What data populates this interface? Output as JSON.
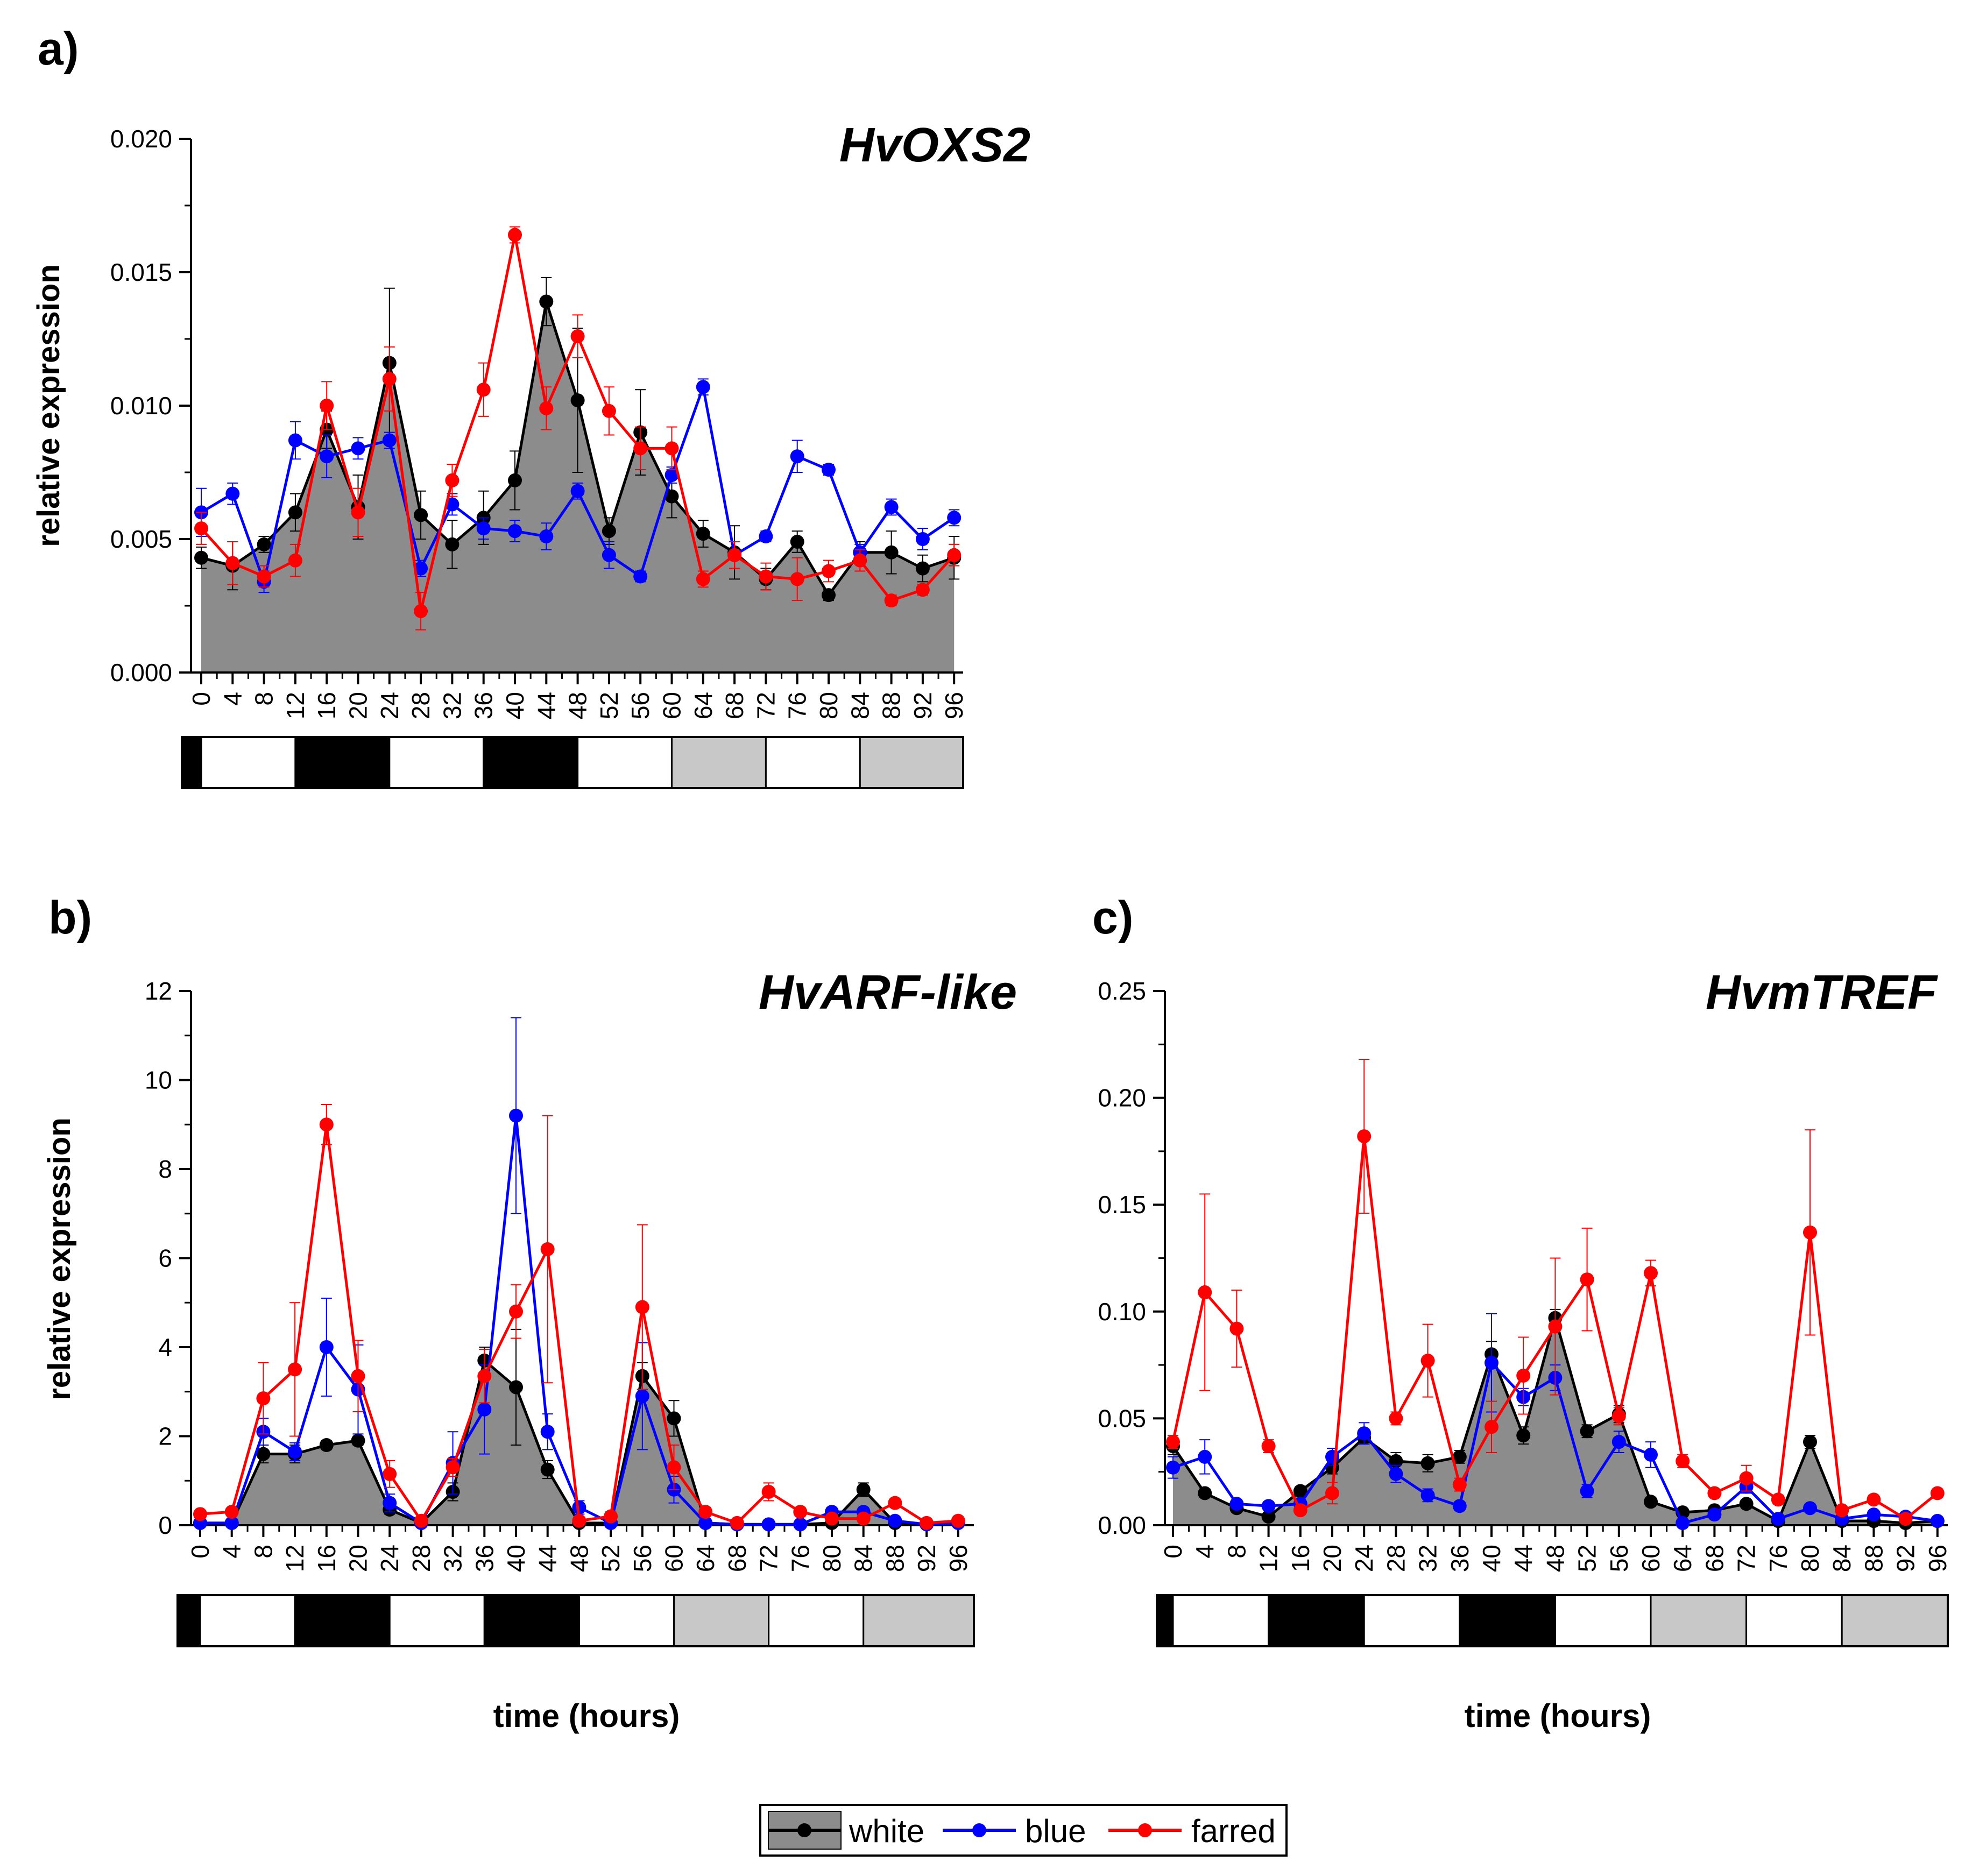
{
  "figure": {
    "legend": {
      "items": [
        "white",
        "blue",
        "farred"
      ]
    },
    "timeline_axis_label": "time (hours)"
  },
  "colors": {
    "white": "#000000",
    "white_fill": "#8c8c8c",
    "blue": "#0000ff",
    "farred": "#ff0000",
    "bar_dark": "#000000",
    "bar_light": "#ffffff",
    "bar_grey": "#c8c8c8"
  },
  "light_schedule": {
    "segments": [
      {
        "from": -1,
        "to": 0,
        "kind": "dark"
      },
      {
        "from": 0,
        "to": 12,
        "kind": "light"
      },
      {
        "from": 12,
        "to": 24,
        "kind": "dark"
      },
      {
        "from": 24,
        "to": 36,
        "kind": "light"
      },
      {
        "from": 36,
        "to": 48,
        "kind": "dark"
      },
      {
        "from": 48,
        "to": 60,
        "kind": "light"
      },
      {
        "from": 60,
        "to": 72,
        "kind": "grey"
      },
      {
        "from": 72,
        "to": 84,
        "kind": "light"
      },
      {
        "from": 84,
        "to": 96,
        "kind": "grey"
      }
    ]
  },
  "chart_data": [
    {
      "id": "a",
      "type": "line",
      "panel_label": "a)",
      "title": "HvOXS2",
      "ylabel": "relative expression",
      "xlabel": "",
      "ylim": [
        0,
        0.02
      ],
      "yticks": [
        "0.000",
        "0.005",
        "0.010",
        "0.015",
        "0.020"
      ],
      "ytick_values": [
        0,
        0.005,
        0.01,
        0.015,
        0.02
      ],
      "x": [
        0,
        4,
        8,
        12,
        16,
        20,
        24,
        28,
        32,
        36,
        40,
        44,
        48,
        52,
        56,
        60,
        64,
        68,
        72,
        76,
        80,
        84,
        88,
        92,
        96
      ],
      "series": [
        {
          "name": "white",
          "filled": true,
          "values": [
            0.0043,
            0.004,
            0.0048,
            0.006,
            0.0091,
            0.0062,
            0.0116,
            0.0059,
            0.0048,
            0.0058,
            0.0072,
            0.0139,
            0.0102,
            0.0053,
            0.009,
            0.0066,
            0.0052,
            0.0045,
            0.0035,
            0.0049,
            0.0029,
            0.0045,
            0.0045,
            0.0039,
            0.0043
          ],
          "errors": [
            0.0004,
            0.0009,
            0.0003,
            0.0007,
            0.0007,
            0.0012,
            0.0028,
            0.0009,
            0.0009,
            0.001,
            0.0011,
            0.0009,
            0.0027,
            0.0005,
            0.0016,
            0.0008,
            0.0005,
            0.001,
            0.0004,
            0.0004,
            0.0002,
            0.0004,
            0.0008,
            0.0005,
            0.0008
          ]
        },
        {
          "name": "blue",
          "values": [
            0.006,
            0.0067,
            0.0034,
            0.0087,
            0.0081,
            0.0084,
            0.0087,
            0.0039,
            0.0063,
            0.0054,
            0.0053,
            0.0051,
            0.0068,
            0.0044,
            0.0036,
            0.0074,
            0.0107,
            0.0044,
            0.0051,
            0.0081,
            0.0076,
            0.0045,
            0.0062,
            0.005,
            0.0058
          ],
          "errors": [
            0.0009,
            0.0004,
            0.0004,
            0.0007,
            0.0008,
            0.0004,
            0.0003,
            0.0003,
            0.0004,
            0.0004,
            0.0004,
            0.0005,
            0.0003,
            0.0005,
            0.0002,
            0.0003,
            0.0003,
            0.0005,
            0.0002,
            0.0006,
            0.0002,
            0.0003,
            0.0003,
            0.0004,
            0.0003
          ]
        },
        {
          "name": "farred",
          "values": [
            0.0054,
            0.0041,
            0.0036,
            0.0042,
            0.01,
            0.006,
            0.011,
            0.0023,
            0.0072,
            0.0106,
            0.0164,
            0.0099,
            0.0126,
            0.0098,
            0.0084,
            0.0084,
            0.0035,
            0.0044,
            0.0036,
            0.0035,
            0.0038,
            0.0042,
            0.0027,
            0.0031,
            0.0044
          ],
          "errors": [
            0.0006,
            0.0008,
            0.0004,
            0.0006,
            0.0009,
            0.0009,
            0.0012,
            0.0007,
            0.0006,
            0.001,
            0.0003,
            0.0008,
            0.0008,
            0.0009,
            0.0008,
            0.0008,
            0.0003,
            0.0005,
            0.0005,
            0.0008,
            0.0004,
            0.0004,
            0.0002,
            0.0002,
            0.0004
          ]
        }
      ]
    },
    {
      "id": "b",
      "type": "line",
      "panel_label": "b)",
      "title": "HvARF-like",
      "ylabel": "relative expression",
      "xlabel": "time (hours)",
      "ylim": [
        0,
        12
      ],
      "yticks": [
        "0",
        "2",
        "4",
        "6",
        "8",
        "10",
        "12"
      ],
      "ytick_values": [
        0,
        2,
        4,
        6,
        8,
        10,
        12
      ],
      "x": [
        0,
        4,
        8,
        12,
        16,
        20,
        24,
        28,
        32,
        36,
        40,
        44,
        48,
        52,
        56,
        60,
        64,
        68,
        72,
        76,
        80,
        84,
        88,
        92,
        96
      ],
      "series": [
        {
          "name": "white",
          "filled": true,
          "values": [
            0.05,
            0.05,
            1.6,
            1.6,
            1.8,
            1.9,
            0.35,
            0.05,
            0.75,
            3.7,
            3.1,
            1.25,
            0.05,
            0.05,
            3.35,
            2.4,
            0.05,
            0.02,
            0.02,
            0.02,
            0.05,
            0.8,
            0.05,
            0.02,
            0.05
          ],
          "errors": [
            0.03,
            0.03,
            0.2,
            0.2,
            0.1,
            0.1,
            0.1,
            0.03,
            0.2,
            0.3,
            1.3,
            0.2,
            0.03,
            0.03,
            0.3,
            0.4,
            0.03,
            0.02,
            0.02,
            0.02,
            0.03,
            0.15,
            0.03,
            0.02,
            0.03
          ]
        },
        {
          "name": "blue",
          "values": [
            0.05,
            0.05,
            2.1,
            1.65,
            4.0,
            3.05,
            0.5,
            0.05,
            1.4,
            2.6,
            9.2,
            2.1,
            0.4,
            0.05,
            2.9,
            0.8,
            0.05,
            0.02,
            0.02,
            0.02,
            0.3,
            0.3,
            0.1,
            0.02,
            0.05
          ],
          "errors": [
            0.03,
            0.03,
            0.3,
            0.2,
            1.1,
            1.0,
            0.2,
            0.03,
            0.7,
            1.0,
            2.2,
            0.4,
            0.15,
            0.03,
            1.2,
            0.3,
            0.03,
            0.02,
            0.02,
            0.02,
            0.1,
            0.1,
            0.05,
            0.02,
            0.03
          ]
        },
        {
          "name": "farred",
          "values": [
            0.25,
            0.3,
            2.85,
            3.5,
            9.0,
            3.35,
            1.15,
            0.1,
            1.3,
            3.35,
            4.8,
            6.2,
            0.1,
            0.2,
            4.9,
            1.3,
            0.3,
            0.05,
            0.75,
            0.3,
            0.15,
            0.15,
            0.5,
            0.05,
            0.1
          ],
          "errors": [
            0.05,
            0.05,
            0.8,
            1.5,
            0.45,
            0.8,
            0.3,
            0.05,
            0.2,
            0.6,
            0.6,
            3.0,
            0.05,
            0.1,
            1.85,
            0.5,
            0.1,
            0.03,
            0.2,
            0.1,
            0.05,
            0.05,
            0.1,
            0.03,
            0.05
          ]
        }
      ]
    },
    {
      "id": "c",
      "type": "line",
      "panel_label": "c)",
      "title": "HvmTREF",
      "ylabel": "",
      "xlabel": "time (hours)",
      "ylim": [
        0,
        0.25
      ],
      "yticks": [
        "0.00",
        "0.05",
        "0.10",
        "0.15",
        "0.20",
        "0.25"
      ],
      "ytick_values": [
        0,
        0.05,
        0.1,
        0.15,
        0.2,
        0.25
      ],
      "x": [
        0,
        4,
        8,
        12,
        16,
        20,
        24,
        28,
        32,
        36,
        40,
        44,
        48,
        52,
        56,
        60,
        64,
        68,
        72,
        76,
        80,
        84,
        88,
        92,
        96
      ],
      "series": [
        {
          "name": "white",
          "filled": true,
          "values": [
            0.037,
            0.015,
            0.008,
            0.004,
            0.016,
            0.027,
            0.041,
            0.03,
            0.029,
            0.032,
            0.08,
            0.042,
            0.097,
            0.044,
            0.052,
            0.011,
            0.006,
            0.007,
            0.01,
            0.002,
            0.039,
            0.002,
            0.002,
            0.001,
            0.002
          ],
          "errors": [
            0.004,
            0.002,
            0.002,
            0.001,
            0.002,
            0.003,
            0.003,
            0.004,
            0.004,
            0.003,
            0.006,
            0.004,
            0.004,
            0.003,
            0.004,
            0.002,
            0.001,
            0.001,
            0.002,
            0.001,
            0.003,
            0.001,
            0.001,
            0.001,
            0.001
          ]
        },
        {
          "name": "blue",
          "values": [
            0.027,
            0.032,
            0.01,
            0.009,
            0.01,
            0.032,
            0.043,
            0.024,
            0.014,
            0.009,
            0.076,
            0.06,
            0.069,
            0.016,
            0.039,
            0.033,
            0.001,
            0.005,
            0.018,
            0.003,
            0.008,
            0.003,
            0.005,
            0.004,
            0.002
          ],
          "errors": [
            0.005,
            0.008,
            0.002,
            0.002,
            0.002,
            0.004,
            0.005,
            0.004,
            0.003,
            0.002,
            0.023,
            0.004,
            0.006,
            0.003,
            0.005,
            0.006,
            0.001,
            0.001,
            0.003,
            0.001,
            0.002,
            0.001,
            0.001,
            0.001,
            0.001
          ]
        },
        {
          "name": "farred",
          "values": [
            0.039,
            0.109,
            0.092,
            0.037,
            0.007,
            0.015,
            0.182,
            0.05,
            0.077,
            0.019,
            0.046,
            0.07,
            0.093,
            0.115,
            0.051,
            0.118,
            0.03,
            0.015,
            0.022,
            0.012,
            0.137,
            0.007,
            0.012,
            0.003,
            0.015
          ],
          "errors": [
            0.003,
            0.046,
            0.018,
            0.003,
            0.002,
            0.005,
            0.036,
            0.003,
            0.017,
            0.003,
            0.012,
            0.018,
            0.032,
            0.024,
            0.004,
            0.006,
            0.003,
            0.002,
            0.006,
            0.002,
            0.048,
            0.001,
            0.002,
            0.001,
            0.002
          ]
        }
      ]
    }
  ]
}
